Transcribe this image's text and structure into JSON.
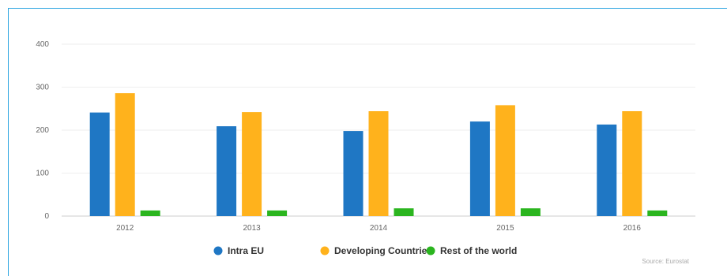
{
  "chart_data": {
    "type": "bar",
    "title": "",
    "xlabel": "",
    "ylabel": "",
    "categories": [
      "2012",
      "2013",
      "2014",
      "2015",
      "2016"
    ],
    "series": [
      {
        "name": "Intra EU",
        "color": "#1f77c4",
        "values": [
          241,
          209,
          198,
          220,
          213
        ]
      },
      {
        "name": "Developing Countries",
        "color": "#ffb21c",
        "values": [
          286,
          242,
          244,
          258,
          244
        ]
      },
      {
        "name": "Rest of the world",
        "color": "#2bb51f",
        "values": [
          13,
          13,
          18,
          18,
          13
        ]
      }
    ],
    "yticks": [
      0,
      100,
      200,
      300,
      400
    ],
    "ylim": [
      0,
      400
    ],
    "grid": true,
    "legend_position": "bottom-center",
    "source": "Source: Eurostat"
  }
}
